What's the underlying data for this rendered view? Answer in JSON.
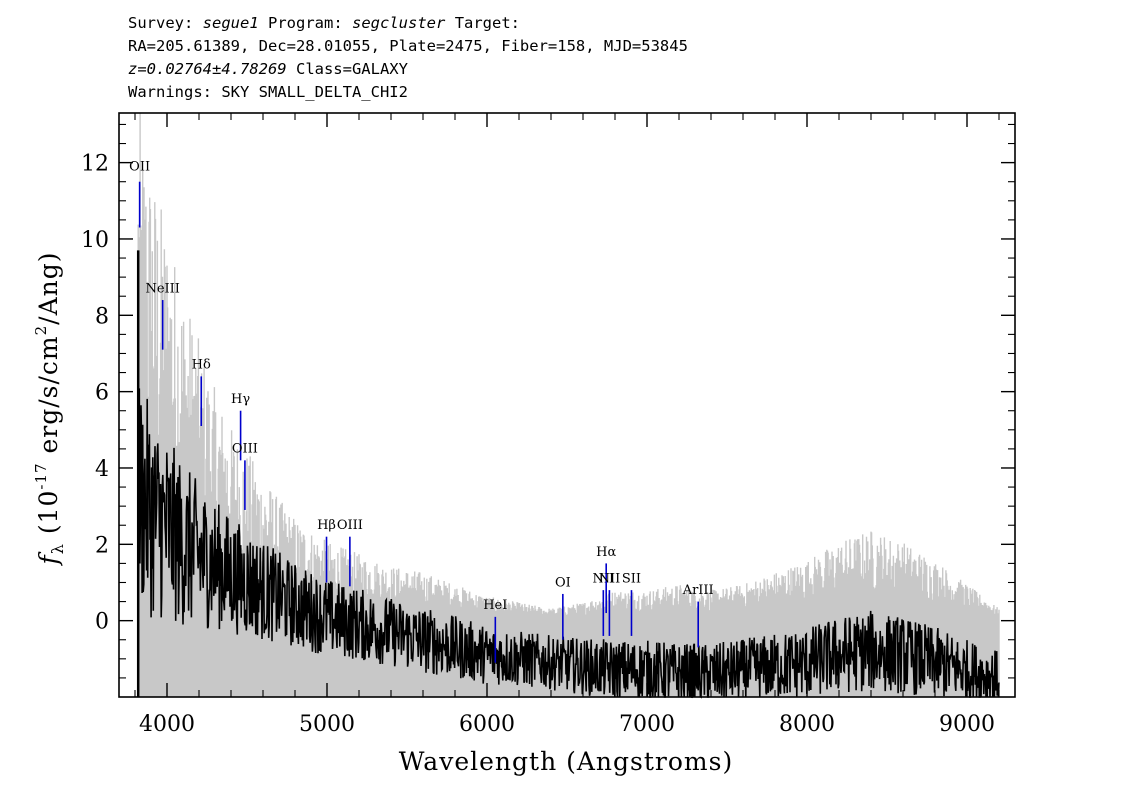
{
  "header": {
    "survey_key": "Survey:",
    "survey": "segue1",
    "program_key": "Program:",
    "program": "segcluster",
    "target_key": "Target:",
    "line2": "RA=205.61389, Dec=28.01055, Plate=2475, Fiber=158, MJD=53845",
    "redshift": "z=0.02764±4.78269",
    "class_text": "Class=GALAXY",
    "warnings": "Warnings: SKY SMALL_DELTA_CHI2"
  },
  "chart_data": {
    "type": "line",
    "xlabel": "Wavelength (Angstroms)",
    "ylabel_text": " (10",
    "ylabel_f": "f",
    "ylabel_sub": "λ",
    "ylabel_exp": "-17",
    "ylabel_units": " erg/s/cm",
    "ylabel_sq": "2",
    "ylabel_end": "/Ang)",
    "xlim": [
      3700,
      9300
    ],
    "ylim": [
      -2,
      13.3
    ],
    "xticks": [
      4000,
      5000,
      6000,
      7000,
      8000,
      9000
    ],
    "yticks": [
      0,
      2,
      4,
      6,
      8,
      10,
      12
    ],
    "grid": false,
    "colors": {
      "flux": "#000000",
      "error": "#c8c8c8",
      "lines": "#0000cc"
    },
    "series": [
      {
        "role": "flux",
        "x": [
          3820,
          3900,
          4000,
          4100,
          4200,
          4300,
          4400,
          4500,
          4600,
          4700,
          4800,
          5000,
          5200,
          5400,
          5600,
          5800,
          6000,
          6200,
          6400,
          6600,
          6800,
          7000,
          7200,
          7400,
          7600,
          7800,
          8000,
          8200,
          8400,
          8600,
          8800,
          9000,
          9200
        ],
        "y": [
          3.5,
          2.8,
          2.4,
          2.0,
          1.7,
          1.5,
          1.2,
          1.0,
          0.8,
          0.6,
          0.4,
          0.1,
          -0.1,
          -0.3,
          -0.5,
          -0.7,
          -0.9,
          -1.0,
          -1.1,
          -1.2,
          -1.3,
          -1.3,
          -1.4,
          -1.4,
          -1.3,
          -1.2,
          -1.1,
          -0.9,
          -0.8,
          -0.9,
          -1.1,
          -1.3,
          -1.5
        ]
      },
      {
        "role": "error",
        "x": [
          3820,
          3900,
          4000,
          4100,
          4200,
          4300,
          4400,
          4500,
          4600,
          4700,
          4800,
          5000,
          5200,
          5400,
          5600,
          5800,
          6000,
          6200,
          6400,
          6600,
          6800,
          7000,
          7200,
          7400,
          7600,
          7800,
          8000,
          8200,
          8400,
          8600,
          8800,
          9000,
          9200
        ],
        "y": [
          8.5,
          7.5,
          6.5,
          5.5,
          4.6,
          3.8,
          3.2,
          2.8,
          2.4,
          2.0,
          1.7,
          1.3,
          1.1,
          0.9,
          0.8,
          0.6,
          0.4,
          0.3,
          0.2,
          0.3,
          0.5,
          0.5,
          0.6,
          0.5,
          0.6,
          0.8,
          1.0,
          1.3,
          1.5,
          1.3,
          1.0,
          0.6,
          0.2
        ]
      }
    ],
    "lines": [
      {
        "label": "OII",
        "x": 3829,
        "y_low": 10.3,
        "y_high": 11.5,
        "label_y": 11.8
      },
      {
        "label": "NeIII",
        "x": 3973,
        "y_low": 7.1,
        "y_high": 8.4,
        "label_y": 8.6
      },
      {
        "label": "Hδ",
        "x": 4214,
        "y_low": 5.1,
        "y_high": 6.4,
        "label_y": 6.6
      },
      {
        "label": "Hγ",
        "x": 4460,
        "y_low": 4.2,
        "y_high": 5.5,
        "label_y": 5.7
      },
      {
        "label": "OIII",
        "x": 4487,
        "y_low": 2.9,
        "y_high": 4.2,
        "label_y": 4.4
      },
      {
        "label": "Hβ",
        "x": 4997,
        "y_low": 1.0,
        "y_high": 2.2,
        "label_y": 2.4
      },
      {
        "label": "OIII",
        "x": 5143,
        "y_low": 0.9,
        "y_high": 2.2,
        "label_y": 2.4
      },
      {
        "label": "HeI",
        "x": 6052,
        "y_low": -1.1,
        "y_high": 0.1,
        "label_y": 0.3
      },
      {
        "label": "OI",
        "x": 6474,
        "y_low": -0.5,
        "y_high": 0.7,
        "label_y": 0.9
      },
      {
        "label": "NII",
        "x": 6727,
        "y_low": -0.4,
        "y_high": 0.8,
        "label_y": 1.0
      },
      {
        "label": "Hα",
        "x": 6745,
        "y_low": 0.2,
        "y_high": 1.5,
        "label_y": 1.7
      },
      {
        "label": "NII",
        "x": 6765,
        "y_low": -0.4,
        "y_high": 0.8,
        "label_y": 1.0
      },
      {
        "label": "SII",
        "x": 6903,
        "y_low": -0.4,
        "y_high": 0.8,
        "label_y": 1.0
      },
      {
        "label": "ArIII",
        "x": 7320,
        "y_low": -0.7,
        "y_high": 0.5,
        "label_y": 0.7
      }
    ]
  }
}
